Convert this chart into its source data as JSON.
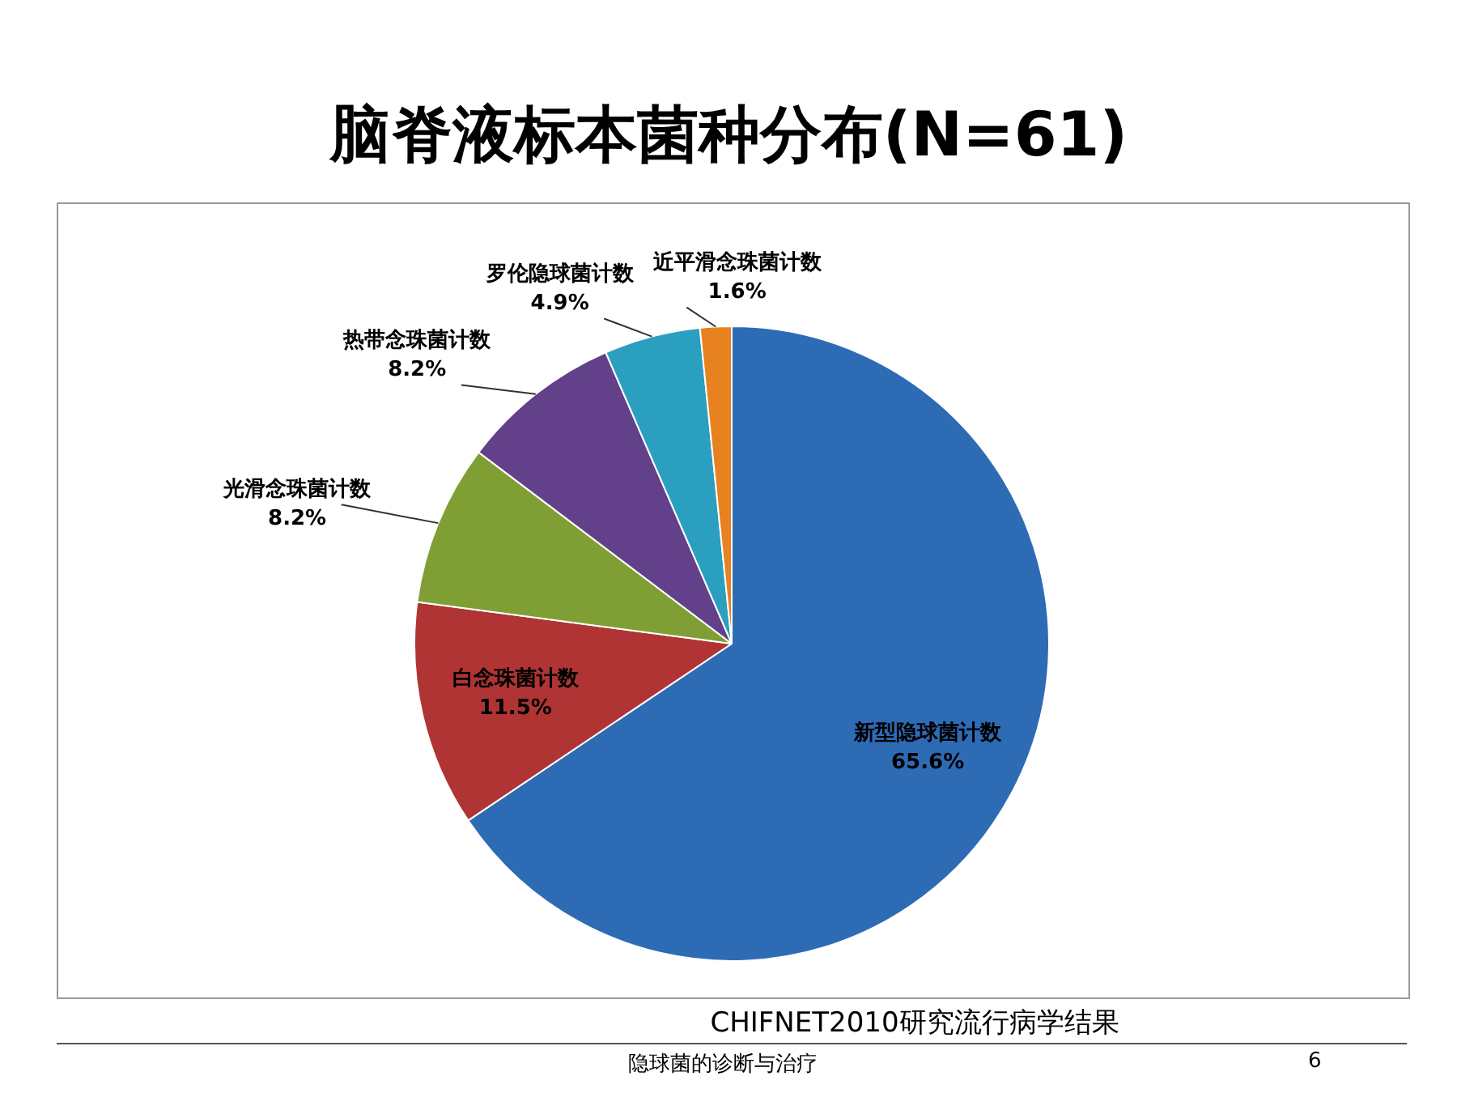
{
  "chart_data": {
    "type": "pie",
    "title": "脑脊液标本菌种分布(N=61)",
    "categories": [
      "新型隐球菌计数",
      "白念珠菌计数",
      "光滑念珠菌计数",
      "热带念珠菌计数",
      "罗伦隐球菌计数",
      "近平滑念珠菌计数"
    ],
    "values": [
      65.6,
      11.5,
      8.2,
      8.2,
      4.9,
      1.6
    ],
    "value_labels": [
      "65.6%",
      "11.5%",
      "8.2%",
      "8.2%",
      "4.9%",
      "1.6%"
    ],
    "colors": [
      "#2e6bb5",
      "#b03434",
      "#7f9f34",
      "#63418a",
      "#2b9fbf",
      "#e8811f"
    ],
    "legend": false,
    "annotations": [
      "CHIFNET2010研究流行病学结果",
      "隐球菌的诊断与治疗",
      "6"
    ]
  }
}
